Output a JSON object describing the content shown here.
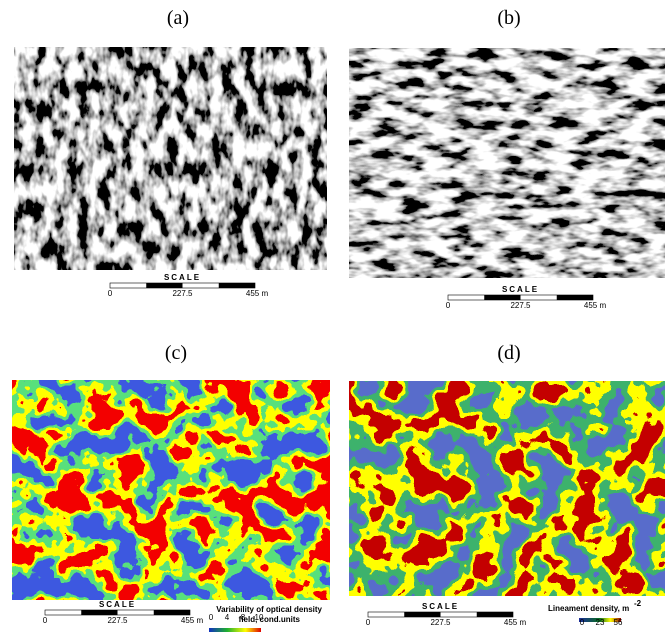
{
  "panels": [
    {
      "label": "(a)",
      "scale": {
        "title": "SCALE",
        "ticks": [
          "0",
          "227.5",
          "455 m"
        ]
      }
    },
    {
      "label": "(b)",
      "scale": {
        "title": "SCALE",
        "ticks": [
          "0",
          "227.5",
          "455 m"
        ]
      }
    },
    {
      "label": "(c)",
      "scale": {
        "title": "SCALE",
        "ticks": [
          "0",
          "227.5",
          "455 m"
        ]
      },
      "legend": {
        "title_lines": [
          "Variability of optical density",
          "field, cond.units"
        ],
        "ticks": [
          "0",
          "4",
          "8",
          "10"
        ]
      }
    },
    {
      "label": "(d)",
      "scale": {
        "title": "SCALE",
        "ticks": [
          "0",
          "227.5",
          "455 m"
        ]
      },
      "legend": {
        "title": "Lineament density, m",
        "title_sup": "-2",
        "ticks": [
          "0",
          "23",
          "56"
        ]
      }
    }
  ]
}
